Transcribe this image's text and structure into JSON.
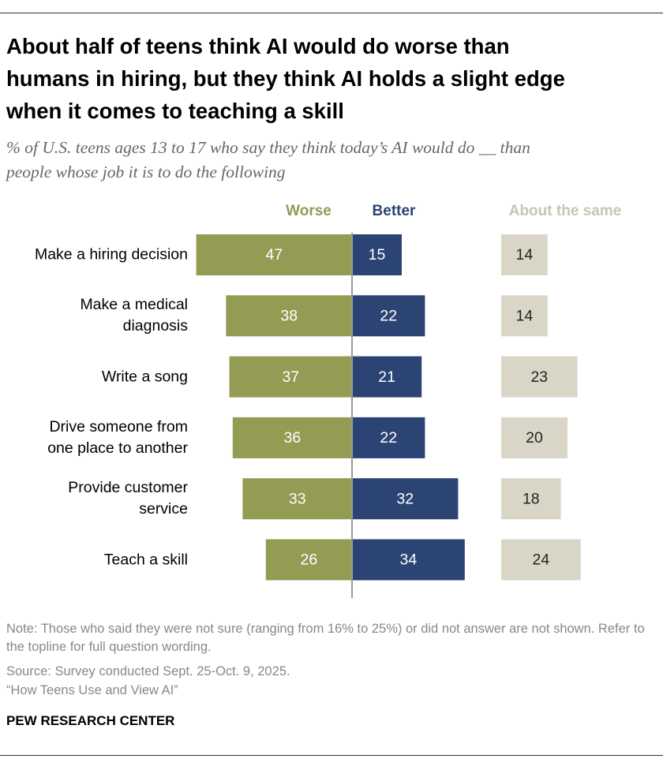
{
  "chart_data": {
    "type": "diverging_bar",
    "title": "About half of teens think AI would do worse than\nhumans in hiring, but they think AI holds a slight edge\nwhen it comes to teaching a skill",
    "subtitle": "% of U.S. teens ages 13 to 17 who say they think today’s AI would do __ than\npeople whose job it is to do the following",
    "categories": [
      "Make a hiring decision",
      "Make a medical\ndiagnosis",
      "Write a song",
      "Drive someone from\none place to another",
      "Provide customer\nservice",
      "Teach a skill"
    ],
    "series": [
      {
        "name": "Worse",
        "color": "#949b53",
        "values": [
          47,
          38,
          37,
          36,
          33,
          26
        ]
      },
      {
        "name": "Better",
        "color": "#2b4474",
        "values": [
          15,
          22,
          21,
          22,
          32,
          34
        ]
      },
      {
        "name": "About the same",
        "color": "#dad6c7",
        "values": [
          14,
          14,
          23,
          20,
          18,
          24
        ]
      }
    ],
    "note": "Note: Those who said they were not sure (ranging from 16% to 25%) or did not answer are not shown. Refer to the topline for full question wording.",
    "source": "Source: Survey conducted Sept. 25-Oct. 9, 2025.",
    "report": "“How Teens Use and View AI”",
    "footer": "PEW RESEARCH CENTER"
  }
}
